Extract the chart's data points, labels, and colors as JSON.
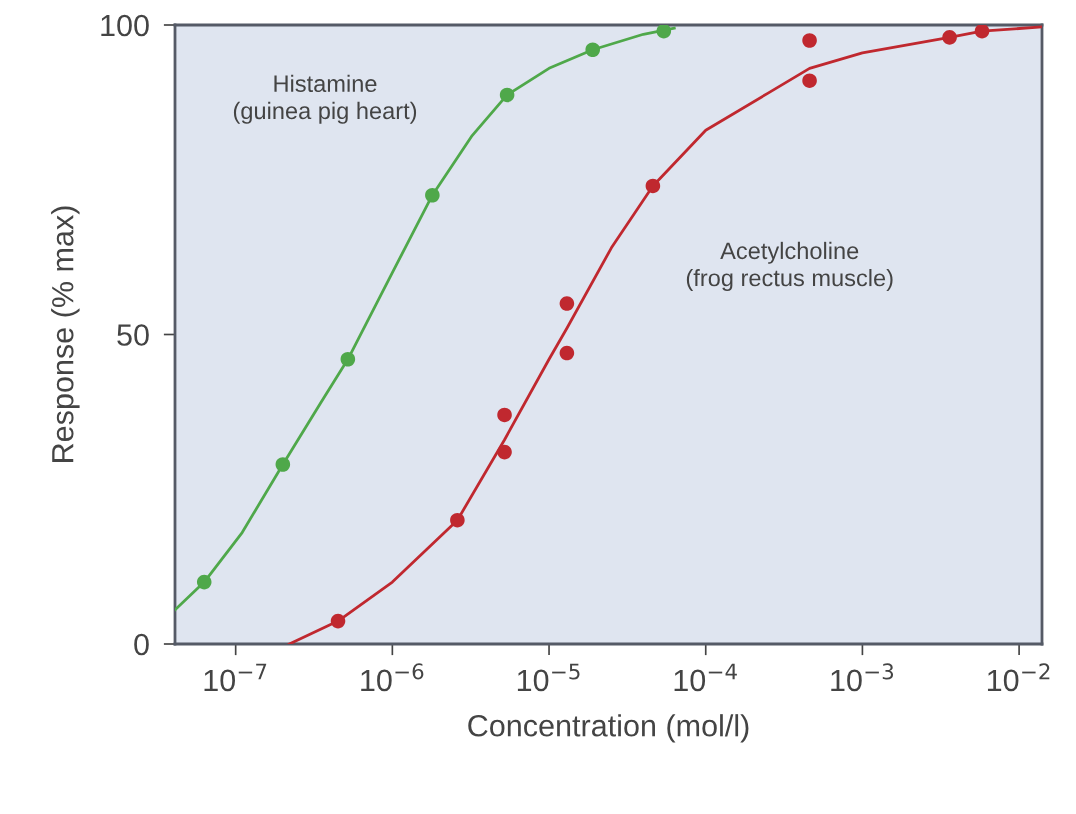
{
  "chart_data": {
    "type": "scatter",
    "xlabel": "Concentration (mol/l)",
    "ylabel": "Response (% max)",
    "log": "x",
    "grid": false,
    "legend": false,
    "xlim": [
      4.1e-08,
      0.014
    ],
    "ylim": [
      0,
      100
    ],
    "xticks": [
      {
        "value": 1e-07,
        "label": "10$^{−7}$"
      },
      {
        "value": 1e-06,
        "label": "10$^{−6}$"
      },
      {
        "value": 1e-05,
        "label": "10$^{−5}$"
      },
      {
        "value": 0.0001,
        "label": "10$^{−4}$"
      },
      {
        "value": 0.001,
        "label": "10$^{−3}$"
      },
      {
        "value": 0.01,
        "label": "10$^{−2}$"
      }
    ],
    "yticks": [
      0,
      50,
      100
    ],
    "series": [
      {
        "name": "Histamine\n(guinea pig heart)",
        "marker": "circle",
        "color": "#4fa84a",
        "x": [
          6.3e-08,
          2e-07,
          5.2e-07,
          1.8e-06,
          5.4e-06,
          1.9e-05,
          5.4e-05
        ],
        "values": [
          10,
          29,
          46,
          72.5,
          88.7,
          96,
          99
        ]
      },
      {
        "name": "Acetylcholine\n(frog rectus muscle)",
        "marker": "circle",
        "color": "#c0282f",
        "x": [
          4.5e-07,
          2.6e-06,
          5.2e-06,
          5.2e-06,
          1.3e-05,
          1.3e-05,
          4.6e-05,
          0.00046,
          0.00046,
          0.0036,
          0.0058
        ],
        "values": [
          3.7,
          20,
          31,
          37,
          47,
          55,
          74,
          91,
          97.5,
          98,
          99
        ]
      },
      {
        "type": "line",
        "marker": "none",
        "line_style": "solid",
        "color": "#4fa84a",
        "x": [
          4.1e-08,
          6.3e-08,
          1.1e-07,
          2e-07,
          3.5e-07,
          5.2e-07,
          1e-06,
          1.8e-06,
          3.2e-06,
          5.4e-06,
          1e-05,
          1.9e-05,
          4e-05,
          6.3e-05
        ],
        "values": [
          5.5,
          10,
          18,
          29,
          39,
          46,
          60,
          72.5,
          82,
          88.7,
          93,
          96,
          98.5,
          99.5
        ]
      },
      {
        "type": "line",
        "marker": "none",
        "line_style": "solid",
        "color": "#c0282f",
        "x": [
          2.2e-07,
          4.5e-07,
          1e-06,
          2.6e-06,
          5.2e-06,
          1e-05,
          1.3e-05,
          2.5e-05,
          4.6e-05,
          0.0001,
          0.00025,
          0.00046,
          0.001,
          0.0036,
          0.0058,
          0.014
        ],
        "values": [
          0,
          3.7,
          10,
          20,
          33,
          46,
          51,
          64,
          74,
          83,
          89,
          93,
          95.5,
          98,
          99,
          99.7
        ]
      }
    ]
  }
}
